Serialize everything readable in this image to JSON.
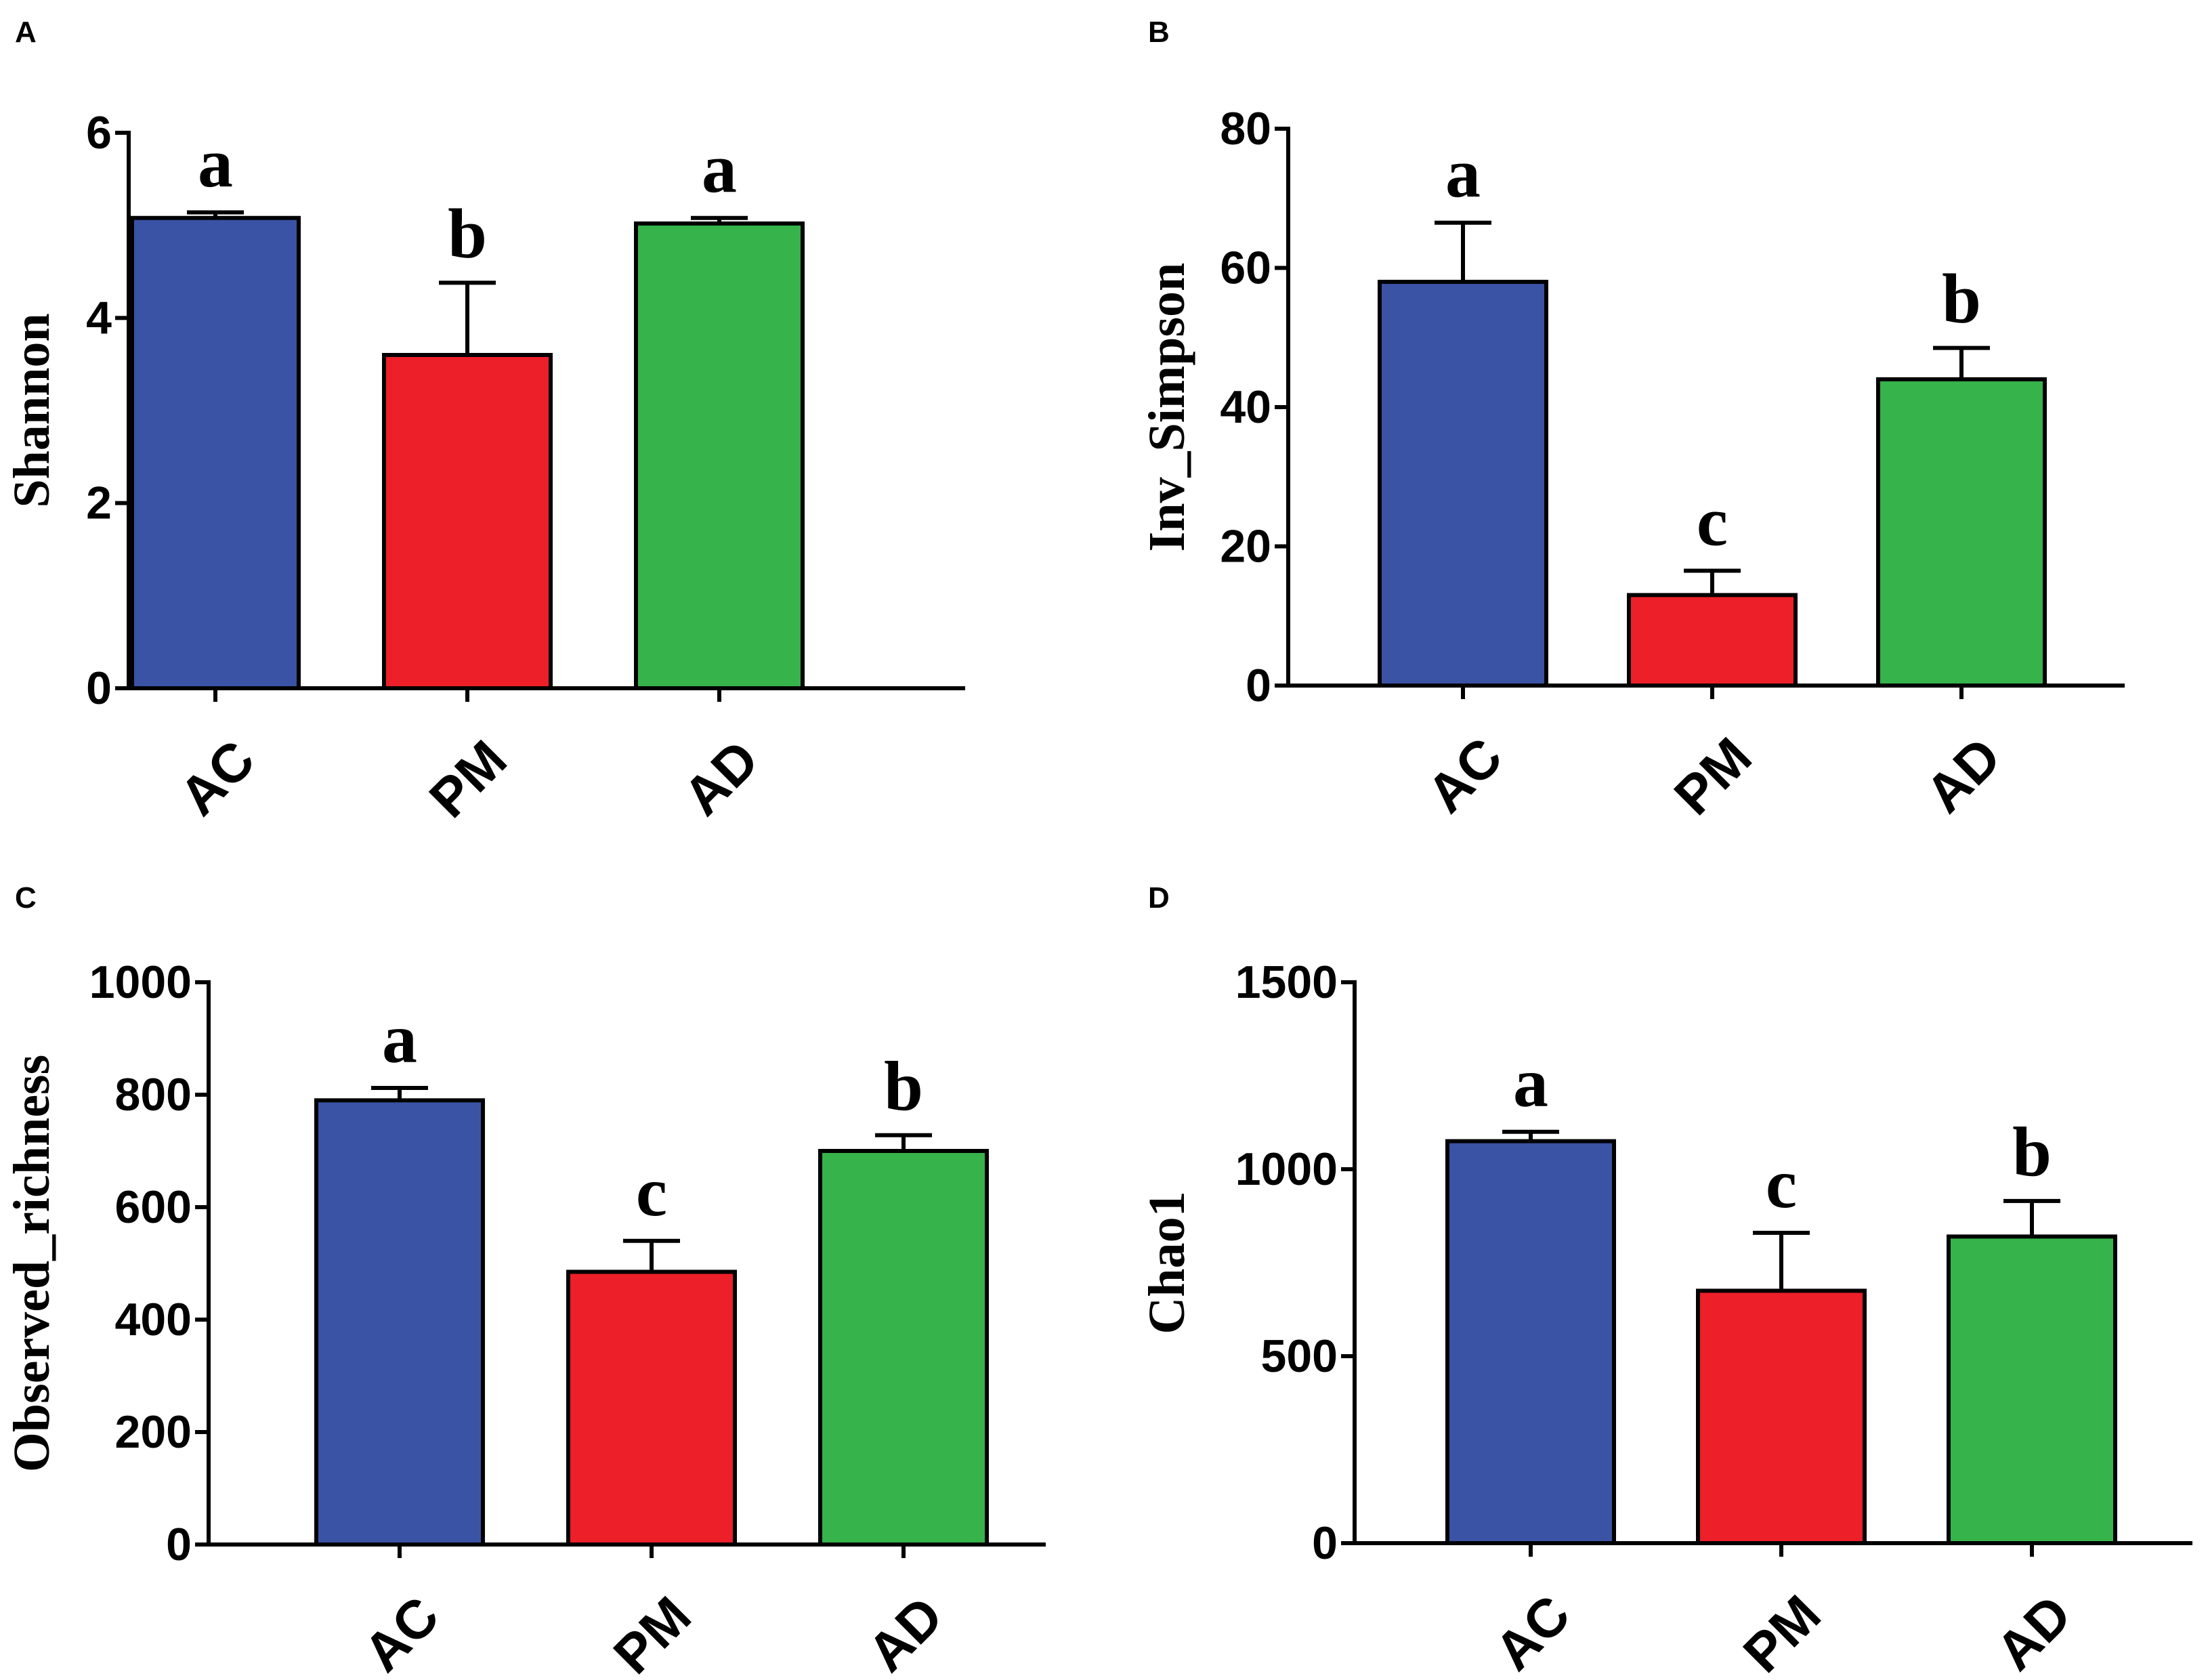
{
  "colors": {
    "AC": "#3a53a4",
    "PM": "#ed1f28",
    "AD": "#36b34a",
    "axis": "#000000"
  },
  "chart_data": [
    {
      "panel": "A",
      "type": "bar",
      "ylabel": "Shannon",
      "categories": [
        "AC",
        "PM",
        "AD"
      ],
      "values": [
        5.08,
        3.6,
        5.02
      ],
      "errors": [
        0.06,
        0.78,
        0.06
      ],
      "significance": [
        "a",
        "b",
        "a"
      ],
      "ylim": [
        0,
        6
      ],
      "yticks": [
        0,
        2,
        4,
        6
      ]
    },
    {
      "panel": "B",
      "type": "bar",
      "ylabel": "Inv_Simpson",
      "categories": [
        "AC",
        "PM",
        "AD"
      ],
      "values": [
        58,
        13,
        44
      ],
      "errors": [
        8.5,
        3.5,
        4.5
      ],
      "significance": [
        "a",
        "c",
        "b"
      ],
      "ylim": [
        0,
        80
      ],
      "yticks": [
        0,
        20,
        40,
        60,
        80
      ]
    },
    {
      "panel": "C",
      "type": "bar",
      "ylabel": "Observed_richness",
      "categories": [
        "AC",
        "PM",
        "AD"
      ],
      "values": [
        790,
        485,
        700
      ],
      "errors": [
        22,
        55,
        28
      ],
      "significance": [
        "a",
        "c",
        "b"
      ],
      "ylim": [
        0,
        1000
      ],
      "yticks": [
        0,
        200,
        400,
        600,
        800,
        1000
      ]
    },
    {
      "panel": "D",
      "type": "bar",
      "ylabel": "Chao1",
      "categories": [
        "AC",
        "PM",
        "AD"
      ],
      "values": [
        1075,
        675,
        820
      ],
      "errors": [
        25,
        155,
        95
      ],
      "significance": [
        "a",
        "c",
        "b"
      ],
      "ylim": [
        0,
        1500
      ],
      "yticks": [
        0,
        500,
        1000,
        1500
      ]
    }
  ]
}
